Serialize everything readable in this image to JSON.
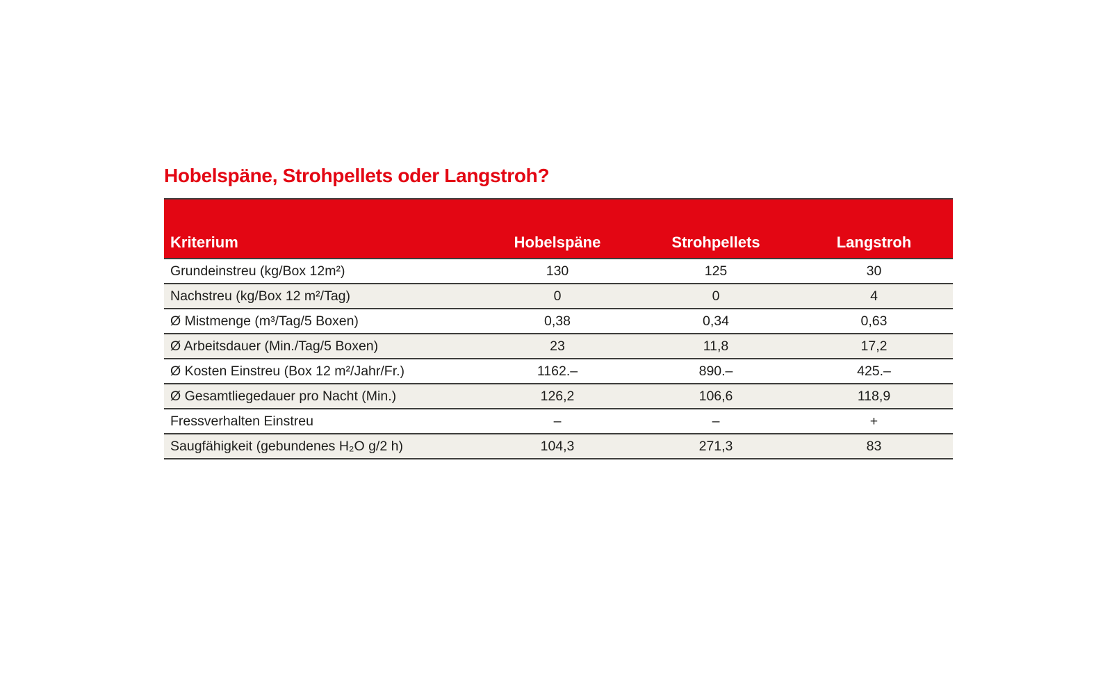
{
  "page": {
    "title": "Hobelspäne, Strohpellets oder Langstroh?"
  },
  "colors": {
    "accent_red": "#e30613",
    "header_text": "#ffffff",
    "row_alt_background": "#f1efe9",
    "rule_line": "#3e3e3c",
    "body_text": "#1d1d1b",
    "page_background": "#ffffff"
  },
  "table": {
    "columns": [
      "Kriterium",
      "Hobelspäne",
      "Strohpellets",
      "Langstroh"
    ],
    "rows": [
      {
        "label": "Grundeinstreu (kg/Box 12m²)",
        "values": [
          "130",
          "125",
          "30"
        ]
      },
      {
        "label": "Nachstreu (kg/Box 12 m²/Tag)",
        "values": [
          "0",
          "0",
          "4"
        ]
      },
      {
        "label": "Ø Mistmenge (m³/Tag/5 Boxen)",
        "values": [
          "0,38",
          "0,34",
          "0,63"
        ]
      },
      {
        "label": "Ø Arbeitsdauer (Min./Tag/5 Boxen)",
        "values": [
          "23",
          "11,8",
          "17,2"
        ]
      },
      {
        "label": "Ø Kosten Einstreu (Box 12 m²/Jahr/Fr.)",
        "values": [
          "1162.–",
          "890.–",
          "425.–"
        ]
      },
      {
        "label": "Ø Gesamtliegedauer pro Nacht (Min.)",
        "values": [
          "126,2",
          "106,6",
          "118,9"
        ]
      },
      {
        "label": "Fressverhalten Einstreu",
        "values": [
          "–",
          "–",
          "+"
        ]
      },
      {
        "label": "Saugfähigkeit (gebundenes H₂O g/2 h)",
        "values": [
          "104,3",
          "271,3",
          "83"
        ]
      }
    ]
  },
  "chart_data": {
    "type": "table",
    "title": "Hobelspäne, Strohpellets oder Langstroh?",
    "columns": [
      "Kriterium",
      "Hobelspäne",
      "Strohpellets",
      "Langstroh"
    ],
    "rows": [
      [
        "Grundeinstreu (kg/Box 12m²)",
        "130",
        "125",
        "30"
      ],
      [
        "Nachstreu (kg/Box 12 m²/Tag)",
        "0",
        "0",
        "4"
      ],
      [
        "Ø Mistmenge (m³/Tag/5 Boxen)",
        "0,38",
        "0,34",
        "0,63"
      ],
      [
        "Ø Arbeitsdauer (Min./Tag/5 Boxen)",
        "23",
        "11,8",
        "17,2"
      ],
      [
        "Ø Kosten Einstreu (Box 12 m²/Jahr/Fr.)",
        "1162.–",
        "890.–",
        "425.–"
      ],
      [
        "Ø Gesamtliegedauer pro Nacht (Min.)",
        "126,2",
        "106,6",
        "118,9"
      ],
      [
        "Fressverhalten Einstreu",
        "–",
        "–",
        "+"
      ],
      [
        "Saugfähigkeit (gebundenes H₂O g/2 h)",
        "104,3",
        "271,3",
        "83"
      ]
    ]
  }
}
